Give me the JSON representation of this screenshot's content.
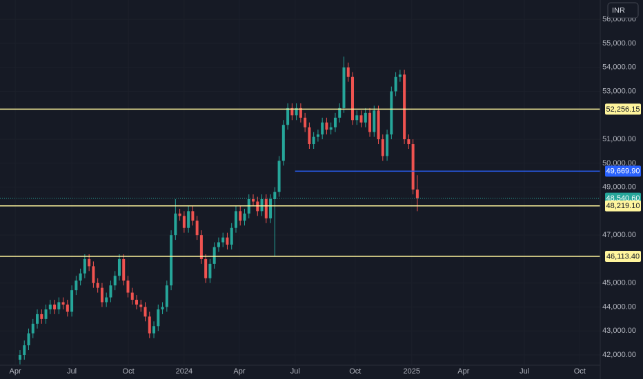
{
  "chart_data": {
    "type": "candlestick",
    "currency": "INR",
    "up_color": "#26a69a",
    "down_color": "#ef5350",
    "grid": true,
    "xlim": [
      -4.63,
      134.35
    ],
    "xticks": [
      {
        "value": -1.1,
        "label": "Apr"
      },
      {
        "value": 12,
        "label": "Jul"
      },
      {
        "value": 25.1,
        "label": "Oct"
      },
      {
        "value": 38,
        "label": "2024"
      },
      {
        "value": 50.8,
        "label": "Apr"
      },
      {
        "value": 63.7,
        "label": "Jul"
      },
      {
        "value": 77.6,
        "label": "Oct"
      },
      {
        "value": 90.7,
        "label": "2025"
      },
      {
        "value": 102.7,
        "label": "Apr"
      },
      {
        "value": 116.8,
        "label": "Jul"
      },
      {
        "value": 129.6,
        "label": "Oct"
      }
    ],
    "ylim": [
      41569,
      56812
    ],
    "yticks": [
      {
        "value": 42000,
        "label": "42,000.00"
      },
      {
        "value": 43000,
        "label": "43,000.00"
      },
      {
        "value": 44000,
        "label": "44,000.00"
      },
      {
        "value": 45000,
        "label": "45,000.00"
      },
      {
        "value": 47000,
        "label": "47,000.00"
      },
      {
        "value": 49000,
        "label": "49,000.00"
      },
      {
        "value": 50000,
        "label": "50,000.00"
      },
      {
        "value": 51000,
        "label": "51,000.00"
      },
      {
        "value": 53000,
        "label": "53,000.00"
      },
      {
        "value": 54000,
        "label": "54,000.00"
      },
      {
        "value": 55000,
        "label": "55,000.00"
      },
      {
        "value": 56000,
        "label": "56,000.00"
      }
    ],
    "open": [
      41800,
      42000,
      42400,
      42900,
      43300,
      43700,
      43500,
      43900,
      44100,
      43900,
      44200,
      44100,
      43800,
      44700,
      45100,
      45400,
      46000,
      45700,
      45000,
      44800,
      44200,
      44400,
      44900,
      45300,
      46000,
      45100,
      44600,
      44300,
      44100,
      44000,
      43600,
      42900,
      43200,
      43900,
      44000,
      44900,
      47000,
      47900,
      47800,
      47300,
      48000,
      47600,
      47000,
      46000,
      45200,
      45800,
      46500,
      46700,
      46900,
      46600,
      47300,
      48000,
      47600,
      47900,
      48500,
      48400,
      48000,
      48500,
      47700,
      48500,
      48800,
      50100,
      51600,
      52300,
      52000,
      52300,
      51900,
      51500,
      50800,
      51100,
      51200,
      51700,
      51400,
      51500,
      51900,
      52300,
      54000,
      53600,
      51800,
      52000,
      51700,
      52100,
      51300,
      52200,
      51000,
      50300,
      51200,
      53000,
      53600,
      53700,
      51000,
      50800,
      48900
    ],
    "high": [
      42200,
      42600,
      43100,
      43500,
      43900,
      43900,
      44100,
      44300,
      44300,
      44400,
      44400,
      44300,
      44900,
      45300,
      45600,
      46200,
      46200,
      45900,
      45200,
      45000,
      44600,
      45100,
      45500,
      46200,
      46200,
      45300,
      44800,
      44500,
      44300,
      44200,
      43800,
      43400,
      44100,
      44200,
      45100,
      47200,
      48500,
      48100,
      48000,
      48200,
      48200,
      47800,
      47200,
      46200,
      46000,
      46700,
      46900,
      47100,
      47100,
      47500,
      48200,
      48200,
      48100,
      48700,
      48700,
      48600,
      48700,
      48700,
      48700,
      49000,
      50300,
      51800,
      52500,
      52500,
      52500,
      52500,
      52100,
      51700,
      51300,
      51400,
      51900,
      51900,
      51700,
      52100,
      52500,
      54450,
      54200,
      53800,
      52200,
      52200,
      52300,
      52300,
      52400,
      52400,
      51200,
      51400,
      53200,
      53800,
      53900,
      53900,
      51200,
      51000,
      49500
    ],
    "low": [
      41600,
      41800,
      42200,
      42700,
      43100,
      43300,
      43300,
      43700,
      43700,
      43700,
      43900,
      43600,
      43600,
      44500,
      44900,
      45200,
      45500,
      44800,
      44600,
      44000,
      44000,
      44200,
      44700,
      45100,
      44900,
      44400,
      44100,
      43900,
      43800,
      43400,
      42700,
      42700,
      43000,
      43700,
      43800,
      44700,
      46800,
      47600,
      47100,
      47100,
      47400,
      46800,
      45800,
      45000,
      45000,
      45600,
      46300,
      46500,
      46400,
      46400,
      47100,
      47400,
      47400,
      47700,
      48200,
      47800,
      47800,
      47500,
      47500,
      46100,
      48600,
      49900,
      51400,
      51800,
      51800,
      51700,
      51300,
      50600,
      50600,
      50900,
      51000,
      51200,
      51200,
      51300,
      51700,
      52100,
      53400,
      51600,
      51600,
      51500,
      51500,
      51100,
      51100,
      50800,
      50100,
      50100,
      51000,
      52800,
      53400,
      50800,
      50600,
      48700,
      48000
    ],
    "close": [
      42000,
      42400,
      42900,
      43300,
      43700,
      43500,
      43900,
      44100,
      43900,
      44200,
      44100,
      43800,
      44700,
      45100,
      45400,
      46000,
      45700,
      45000,
      44800,
      44200,
      44400,
      44900,
      45300,
      46000,
      45100,
      44600,
      44300,
      44100,
      44000,
      43600,
      42900,
      43200,
      43900,
      44000,
      44900,
      47000,
      47900,
      47800,
      47300,
      48000,
      47600,
      47000,
      46000,
      45200,
      45800,
      46500,
      46700,
      46900,
      46600,
      47300,
      48000,
      47600,
      47900,
      48500,
      48400,
      48000,
      48500,
      47700,
      48500,
      48800,
      50100,
      51600,
      52300,
      52000,
      52300,
      51900,
      51500,
      50800,
      51100,
      51200,
      51700,
      51400,
      51500,
      51900,
      52300,
      54000,
      53600,
      51800,
      52000,
      51700,
      52100,
      51300,
      52200,
      51000,
      50300,
      51200,
      53000,
      53600,
      53700,
      51000,
      50800,
      48900,
      48540.6
    ],
    "hlines": [
      {
        "value": 52256.15,
        "label": "52,256.15",
        "color": "#fff59d"
      },
      {
        "value": 49669.9,
        "label": "49,669.90",
        "color": "#2962ff",
        "from": 63.7
      },
      {
        "value": 48540.6,
        "label": "48,540.60",
        "color": "#26a69a",
        "dashed": true
      },
      {
        "value": 48219.1,
        "label": "48,219.10",
        "color": "#fff59d"
      },
      {
        "value": 46113.4,
        "label": "46,113.40",
        "color": "#fff59d"
      }
    ]
  }
}
